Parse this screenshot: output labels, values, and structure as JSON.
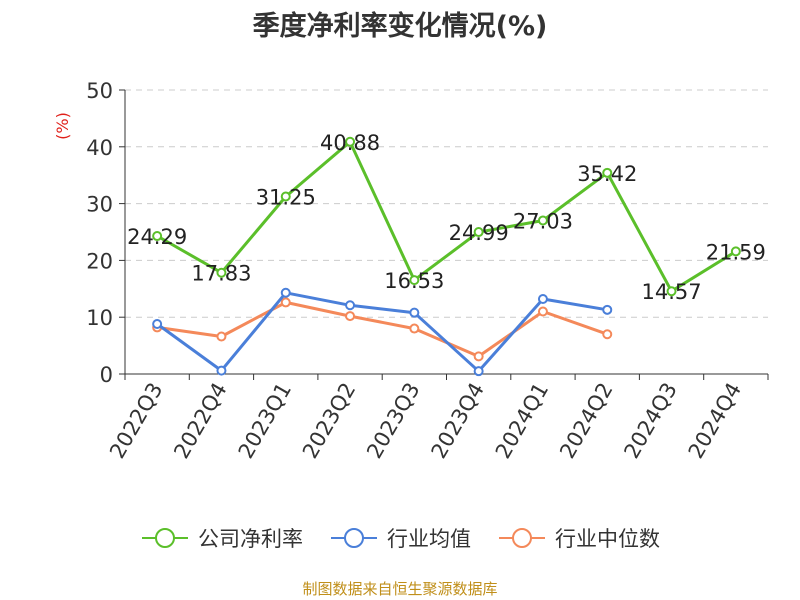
{
  "chart_data": {
    "type": "line",
    "title": "季度净利率变化情况(%)",
    "ylabel": "(%)",
    "ylim": [
      0,
      50
    ],
    "yticks": [
      0,
      10,
      20,
      30,
      40,
      50
    ],
    "grid": true,
    "legend_position": "bottom",
    "categories": [
      "2022Q3",
      "2022Q4",
      "2023Q1",
      "2023Q2",
      "2023Q3",
      "2023Q4",
      "2024Q1",
      "2024Q2",
      "2024Q3",
      "2024Q4"
    ],
    "series": [
      {
        "name": "公司净利率",
        "color": "#5bbf2a",
        "show_labels": true,
        "values": [
          24.29,
          17.83,
          31.25,
          40.88,
          16.53,
          24.99,
          27.03,
          35.42,
          14.57,
          21.59
        ]
      },
      {
        "name": "行业均值",
        "color": "#4a7fd9",
        "show_labels": false,
        "values": [
          8.8,
          0.6,
          14.3,
          12.1,
          10.8,
          0.5,
          13.2,
          11.3,
          null,
          null
        ]
      },
      {
        "name": "行业中位数",
        "color": "#f4895a",
        "show_labels": false,
        "values": [
          8.2,
          6.6,
          12.6,
          10.2,
          8.0,
          3.1,
          11.0,
          7.0,
          null,
          null
        ]
      }
    ]
  },
  "footer": "制图数据来自恒生聚源数据库"
}
